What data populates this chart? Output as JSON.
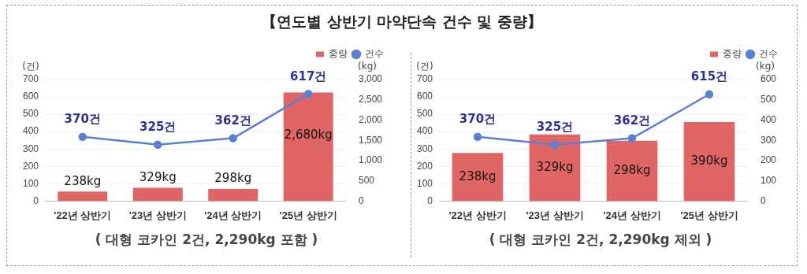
{
  "chart_data": [
    {
      "type": "bar",
      "title": "【연도별 상반기 마약단속 건수 및 중량】",
      "ylabel": "(건)",
      "y2label": "(kg)",
      "categories": [
        "'22년 상반기",
        "'23년 상반기",
        "'24년 상반기",
        "'25년 상반기"
      ],
      "series": [
        {
          "name": "중량",
          "type": "bar",
          "axis": "y2",
          "color": "#e06666",
          "values": [
            238,
            329,
            298,
            2680
          ],
          "value_labels": [
            "238kg",
            "329kg",
            "298kg",
            "2,680kg"
          ]
        },
        {
          "name": "건수",
          "type": "line",
          "color": "#5b7fd1",
          "values": [
            370,
            325,
            362,
            617
          ],
          "value_labels": [
            "370건",
            "325건",
            "362건",
            "617건"
          ]
        }
      ],
      "ylim": [
        0,
        700
      ],
      "yticks": [
        0,
        100,
        200,
        300,
        400,
        500,
        600,
        700
      ],
      "y2lim": [
        0,
        3000
      ],
      "y2ticks": [
        0,
        {
          "value": 500,
          "label": "500"
        },
        {
          "value": 1000,
          "label": "1,000"
        },
        {
          "value": 1500,
          "label": "1,500"
        },
        {
          "value": 2000,
          "label": "2,000"
        },
        {
          "value": 2500,
          "label": "2,500"
        },
        {
          "value": 3000,
          "label": "3,000"
        }
      ],
      "grid": "y",
      "legend": "top right",
      "marker": "circle",
      "line_style": "solid",
      "annotations": [
        "( 대형 코카인 2건, 2,290kg 포함 )"
      ]
    },
    {
      "type": "bar",
      "ylabel": "(건)",
      "y2label": "(kg)",
      "categories": [
        "'22년 상반기",
        "'23년 상반기",
        "'24년 상반기",
        "'25년 상반기"
      ],
      "series": [
        {
          "name": "중량",
          "type": "bar",
          "axis": "y2",
          "color": "#e06666",
          "values": [
            238,
            329,
            298,
            390
          ],
          "value_labels": [
            "238kg",
            "329kg",
            "298kg",
            "390kg"
          ]
        },
        {
          "name": "건수",
          "type": "line",
          "color": "#5b7fd1",
          "values": [
            370,
            325,
            362,
            615
          ],
          "value_labels": [
            "370건",
            "325건",
            "362건",
            "615건"
          ]
        }
      ],
      "ylim": [
        0,
        700
      ],
      "yticks": [
        0,
        100,
        200,
        300,
        400,
        500,
        600,
        700
      ],
      "y2lim": [
        0,
        600
      ],
      "y2ticks": [
        0,
        100,
        200,
        300,
        400,
        500,
        600
      ],
      "grid": "y",
      "legend": "top right",
      "marker": "circle",
      "line_style": "solid",
      "annotations": [
        "( 대형 코카인 2건, 2,290kg 제외 )"
      ]
    }
  ]
}
